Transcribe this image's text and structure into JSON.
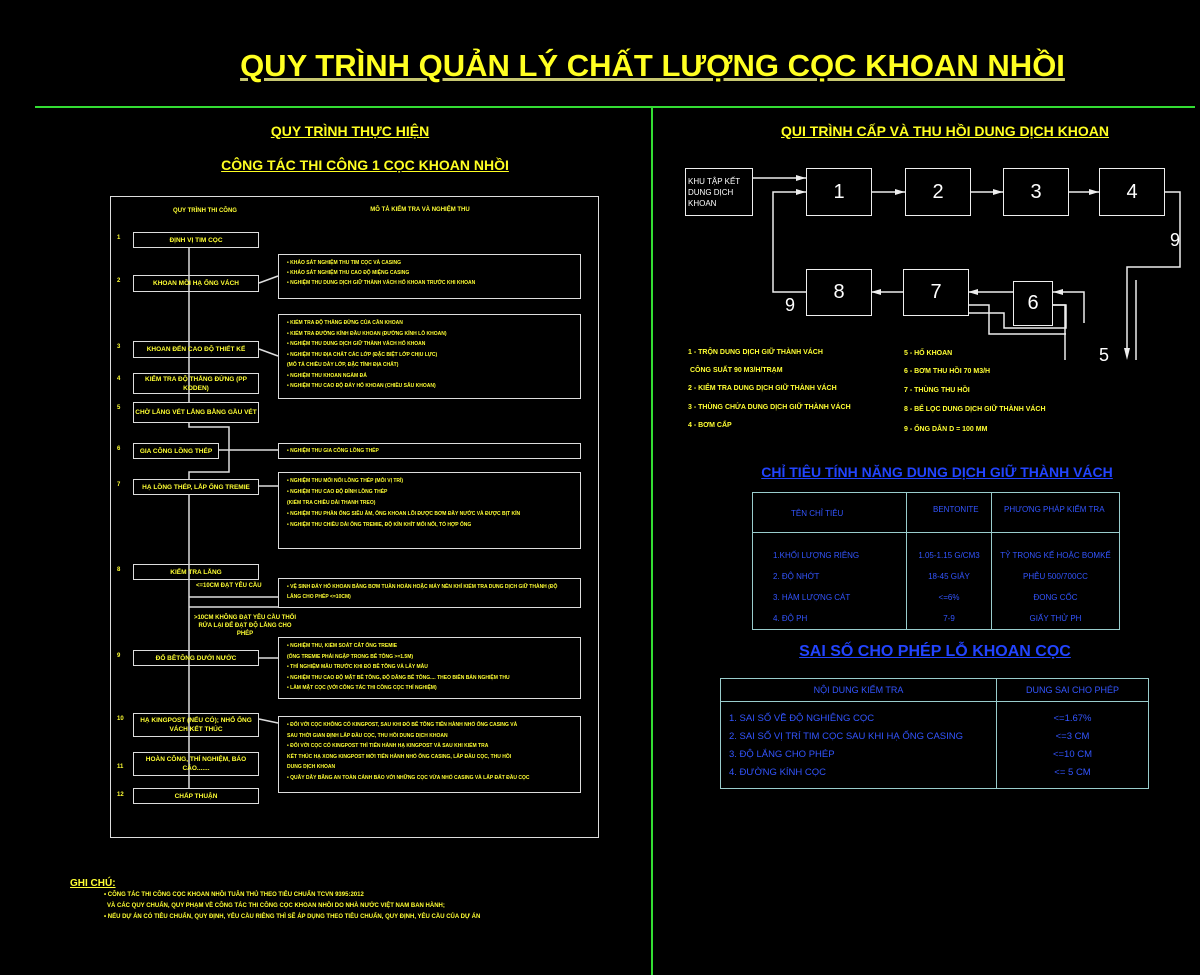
{
  "title": "QUY TRÌNH QUẢN LÝ CHẤT LƯỢNG CỌC KHOAN NHỒI",
  "left": {
    "heading": "QUY TRÌNH THỰC HIỆN",
    "subheading": "CÔNG TÁC THI CÔNG 1 CỌC KHOAN NHỒI",
    "col_steps": "QUY TRÌNH THI CÔNG",
    "col_desc": "MÔ TẢ KIỂM TRA VÀ NGHIỆM THU",
    "steps": [
      {
        "num": "1",
        "label": "ĐỊNH VỊ TIM CỌC"
      },
      {
        "num": "2",
        "label": "KHOAN MỒI HẠ ỐNG VÁCH"
      },
      {
        "num": "3",
        "label": "KHOAN ĐẾN CAO ĐỘ THIẾT KẾ"
      },
      {
        "num": "4",
        "label": "KIỂM TRA ĐỘ THẲNG ĐỨNG (PP KODEN)"
      },
      {
        "num": "5",
        "label": "CHỜ LẮNG VÉT LẮNG BẰNG GẦU VÉT"
      },
      {
        "num": "6",
        "label": "GIA CÔNG LỒNG THÉP"
      },
      {
        "num": "7",
        "label": "HẠ LỒNG THÉP, LẮP ỐNG TREMIE"
      },
      {
        "num": "8",
        "label": "KIỂM TRA LẮNG"
      },
      {
        "num": "9",
        "label": "ĐỔ BÊTÔNG DƯỚI NƯỚC"
      },
      {
        "num": "10",
        "label": "HẠ KINGPOST (NẾU CÓ); NHỔ ỐNG VÁCH KẾT THÚC"
      },
      {
        "num": "11",
        "label": "HOÀN CÔNG, THÍ NGHIỆM, BÁO CÁO......."
      },
      {
        "num": "12",
        "label": "CHẤP THUẬN"
      }
    ],
    "branch_ok": "<=10CM ĐẠT YÊU CẦU",
    "branch_fail": ">10CM KHÔNG ĐẠT YÊU CẦU THỔI RỬA LẠI ĐỂ ĐẠT ĐỘ LẮNG CHO PHÉP",
    "desc": [
      "• KHẢO SÁT NGHIỆM THU TIM CỌC VÀ CASING\n• KHẢO SÁT NGHIỆM THU CAO ĐỘ MIỆNG CASING\n• NGHIỆM THU DUNG DỊCH GIỮ THÀNH VÁCH HỐ KHOAN TRƯỚC KHI KHOAN",
      "• KIỂM TRA ĐỘ THẲNG ĐỨNG CỦA CẦN KHOAN\n• KIỂM TRA ĐƯỜNG KÍNH ĐẦU KHOAN (ĐƯỜNG KÍNH LỖ KHOAN)\n• NGHIỆM THU DUNG DỊCH GIỮ THÀNH VÁCH HỐ KHOAN\n• NGHIỆM THU ĐỊA CHẤT CÁC LỚP (ĐẶC BIỆT LỚP CHỊU LỰC)\n(MÔ TẢ CHIỀU DÀY LỚP, ĐẶC TÍNH ĐỊA CHẤT)\n• NGHIỆM THU KHOAN NGÀM ĐÁ\n• NGHIỆM THU CAO ĐỘ ĐÁY HỐ KHOAN (CHIỀU SÂU KHOAN)",
      "• NGHIỆM THU GIA CÔNG LỒNG THÉP",
      "• NGHIỆM THU MỐI NỐI LỒNG THÉP (MỖI VỊ TRÍ)\n• NGHIỆM THU CAO ĐỘ ĐỈNH LỒNG THÉP\n(KIỂM TRA CHIỀU DÀI THANH TREO)\n• NGHIỆM THU PHẦN ỐNG SIÊU ÂM, ỐNG KHOAN LÕI ĐƯỢC BƠM ĐẦY NƯỚC VÀ ĐƯỢC BỊT KÍN\n• NGHIỆM THU CHIỀU DÀI ỐNG TREMIE, ĐỘ KÍN KHÍT MỐI NỐI, TỔ HỢP ỐNG",
      "• VỆ SINH ĐÁY HỐ KHOAN BẰNG BƠM TUẦN HOÀN HOẶC MÁY NÉN KHÍ KIỂM TRA DUNG DỊCH GIỮ THÀNH (ĐỘ LẮNG CHO PHÉP <=10CM)",
      "• NGHIỆM THU, KIỂM SOÁT CẮT ỐNG TREMIE\n(ỐNG TREMIE PHẢI NGẬP TRONG BÊ TÔNG >=1.5M)\n• THÍ NGHIỆM MẪU TRƯỚC KHI ĐỔ BÊ TÔNG VÀ LẤY MẪU\n• NGHIỆM THU CAO ĐỘ MẶT BÊ TÔNG, ĐỘ DÂNG BÊ TÔNG.... THEO BIÊN BẢN NGHIỆM THU\n• LÀM MẶT CỌC (VỚI CÔNG TÁC THI CÔNG CỌC THÍ NGHIỆM)",
      "• ĐỐI VỚI CỌC KHÔNG CÓ KINGPOST, SAU KHI ĐỔ BÊ TÔNG TIẾN HÀNH NHỔ ỐNG CASING VÀ\nSAU THỜI GIAN ĐỊNH LẤP ĐẦU CỌC, THU HỒI DUNG DỊCH KHOAN\n• ĐỐI VỚI CỌC CÓ KINGPOST THÌ TIẾN HÀNH HẠ KINGPOST VÀ SAU KHI KIỂM TRA\nKẾT THÚC HẠ XONG KINGPOST MỚI TIẾN HÀNH NHỔ ỐNG CASING, LẤP ĐẦU CỌC, THU HỒI\nDUNG DỊCH KHOAN\n• QUÂY DÂY BĂNG AN TOÀN CẢNH BÁO VỚI NHỮNG CỌC VỪA NHỔ CASING VÀ LẤP ĐẤT ĐẦU CỌC"
    ]
  },
  "notes": {
    "heading": "GHI CHÚ:",
    "lines": [
      "• CÔNG TÁC THI CÔNG CỌC KHOAN NHỒI TUÂN THỦ THEO TIÊU CHUẨN TCVN 9395:2012",
      "VÀ CÁC QUY CHUẨN, QUY PHẠM VỀ CÔNG TÁC THI CÔNG CỌC KHOAN NHỒI DO NHÀ NƯỚC VIỆT NAM BAN HÀNH;",
      "• NẾU DỰ ÁN CÓ TIÊU CHUẨN, QUY ĐỊNH, YÊU CẦU RIÊNG THÌ SẼ ÁP DỤNG THEO TIÊU CHUẨN, QUY ĐỊNH, YÊU CẦU CỦA DỰ ÁN"
    ]
  },
  "right": {
    "heading": "QUI TRÌNH CẤP VÀ THU HỒI DUNG DỊCH KHOAN",
    "source_box": "KHU TẬP KẾT DUNG DỊCH KHOAN",
    "nodes": [
      "1",
      "2",
      "3",
      "4",
      "5",
      "6",
      "7",
      "8",
      "9"
    ],
    "legend_left": [
      "1 - TRỘN DUNG DỊCH GIỮ THÀNH VÁCH",
      "CÔNG SUẤT 90 M3/H/TRẠM",
      "2 - KIỂM TRA DUNG DỊCH GIỮ THÀNH VÁCH",
      "3 - THÙNG CHỨA DUNG DỊCH GIỮ THÀNH VÁCH",
      "4 - BƠM CẤP"
    ],
    "legend_right": [
      "5 - HỐ KHOAN",
      "6 - BƠM THU HỒI 70 M3/H",
      "7 - THÙNG THU HỒI",
      "8 - BỂ LỌC DUNG DỊCH GIỮ THÀNH VÁCH",
      "9 - ỐNG DẪN D = 100 MM"
    ],
    "table1": {
      "title": "CHỈ TIÊU TÍNH NĂNG DUNG DỊCH GIỮ THÀNH VÁCH",
      "headers": [
        "TÊN CHỈ TIÊU",
        "BENTONITE",
        "PHƯƠNG PHÁP KIỂM TRA"
      ],
      "rows": [
        [
          "1.KHỐI LƯỢNG RIÊNG",
          "1.05-1.15 G/CM3",
          "TỶ TRỌNG KẾ HOẶC BOMKẾ"
        ],
        [
          "2. ĐỘ NHỚT",
          "18-45 GIÂY",
          "PHỄU 500/700CC"
        ],
        [
          "3. HÀM LƯỢNG CÁT",
          "<=6%",
          "ĐONG CỐC"
        ],
        [
          "4. ĐỘ PH",
          "7-9",
          "GIẤY THỬ PH"
        ]
      ]
    },
    "table2": {
      "title": "SAI SỐ CHO PHÉP LỖ KHOAN CỌC",
      "headers": [
        "NỘI DUNG KIỂM TRA",
        "DUNG SAI CHO PHÉP"
      ],
      "rows": [
        [
          "1. SAI SỐ VỀ ĐỘ NGHIÊNG CỌC",
          "<=1.67%"
        ],
        [
          "2. SAI SỐ VỊ TRÍ TIM CỌC SAU KHI HẠ ỐNG CASING",
          "<=3 CM"
        ],
        [
          "3. ĐỘ LẮNG CHO PHÉP",
          "<=10 CM"
        ],
        [
          "4. ĐƯỜNG KÍNH CỌC",
          "<= 5 CM"
        ]
      ]
    }
  },
  "colors": {
    "background": "#000000",
    "title": "#ffff22",
    "frame_lines": "#33ff33",
    "table_text": "#3355ff"
  }
}
